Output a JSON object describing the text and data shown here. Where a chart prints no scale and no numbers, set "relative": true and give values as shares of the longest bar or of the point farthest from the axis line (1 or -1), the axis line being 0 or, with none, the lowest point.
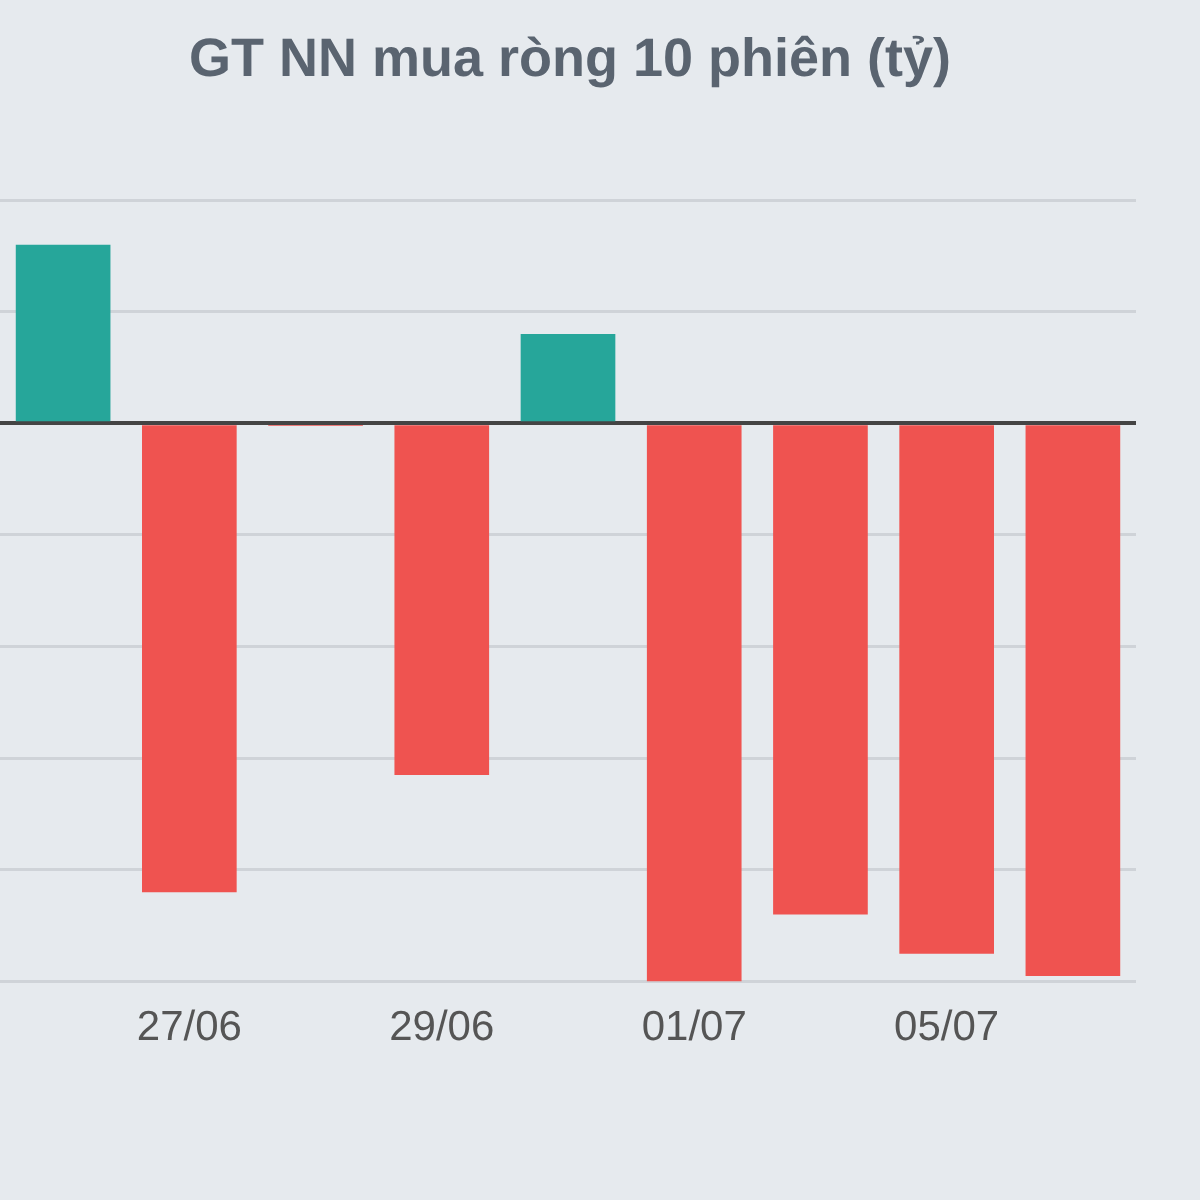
{
  "chart_data": {
    "type": "bar",
    "title": "GT NN mua ròng 10 phiên (tỷ)",
    "relative": true,
    "grid": "y",
    "categories": [
      null,
      "27/06",
      null,
      "29/06",
      null,
      "01/07",
      null,
      "05/07",
      null
    ],
    "values": [
      0.32,
      -0.84,
      -0.005,
      -0.63,
      0.16,
      -1,
      -0.88,
      -0.95,
      -0.99
    ],
    "colors": [
      "#26a69a",
      "#ef5350",
      "#ef5350",
      "#ef5350",
      "#26a69a",
      "#ef5350",
      "#ef5350",
      "#ef5350",
      "#ef5350"
    ]
  }
}
